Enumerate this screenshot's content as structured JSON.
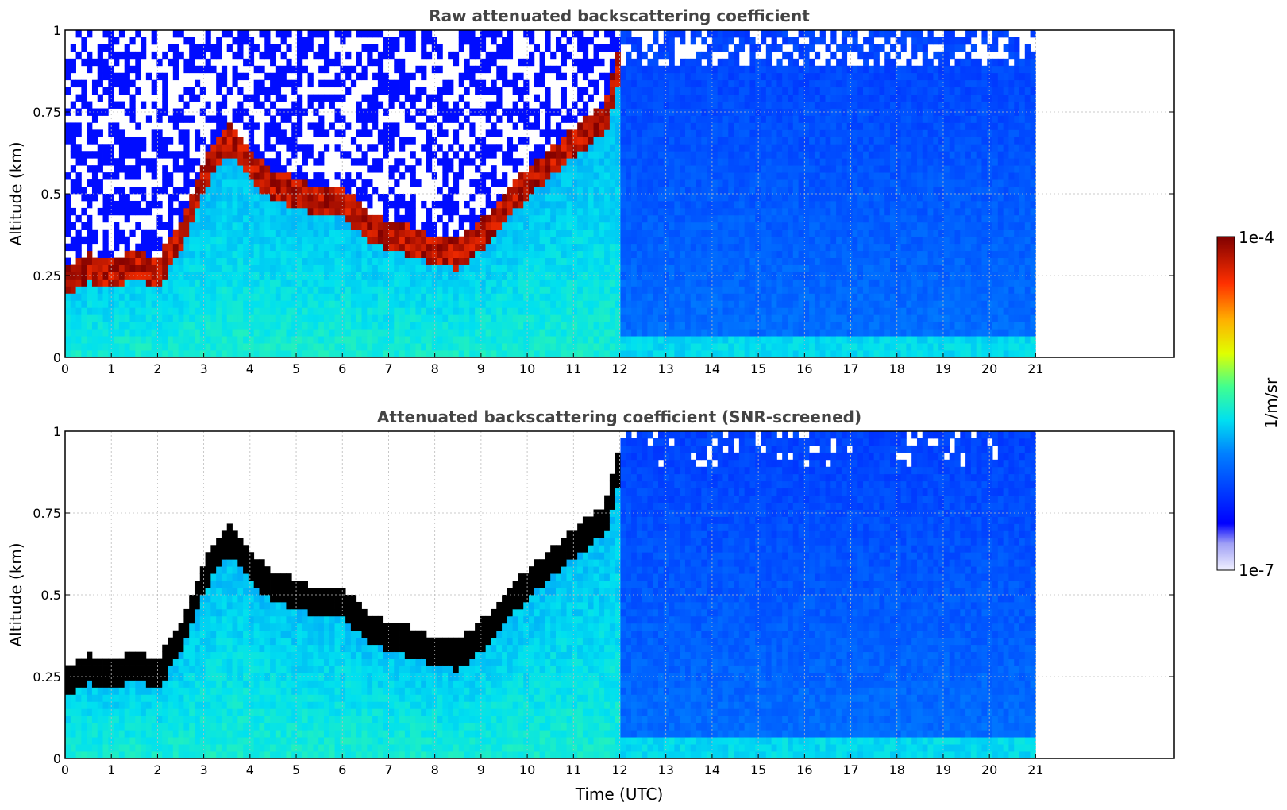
{
  "chart_data": [
    {
      "type": "heatmap",
      "title": "Raw attenuated backscattering coefficient",
      "xlabel": "",
      "ylabel": "Altitude (km)",
      "xlim": [
        0,
        24
      ],
      "ylim": [
        0,
        1
      ],
      "x_ticks": [
        "0",
        "1",
        "2",
        "3",
        "4",
        "5",
        "6",
        "7",
        "8",
        "9",
        "10",
        "11",
        "12",
        "13",
        "14",
        "15",
        "16",
        "17",
        "18",
        "19",
        "20",
        "21"
      ],
      "y_ticks": [
        "0",
        "0.25",
        "0.5",
        "0.75",
        "1"
      ],
      "data_extent_hours": [
        0,
        21
      ],
      "grid": true,
      "layer_top_km": [
        [
          0,
          0.27
        ],
        [
          0.5,
          0.32
        ],
        [
          1,
          0.3
        ],
        [
          1.5,
          0.33
        ],
        [
          2,
          0.3
        ],
        [
          2.5,
          0.42
        ],
        [
          3,
          0.6
        ],
        [
          3.5,
          0.72
        ],
        [
          4,
          0.63
        ],
        [
          4.5,
          0.57
        ],
        [
          5,
          0.55
        ],
        [
          5.5,
          0.52
        ],
        [
          6,
          0.53
        ],
        [
          6.5,
          0.45
        ],
        [
          7,
          0.42
        ],
        [
          7.5,
          0.4
        ],
        [
          8,
          0.37
        ],
        [
          8.5,
          0.36
        ],
        [
          9,
          0.42
        ],
        [
          9.5,
          0.5
        ],
        [
          10,
          0.58
        ],
        [
          10.5,
          0.64
        ],
        [
          11,
          0.7
        ],
        [
          11.7,
          0.78
        ],
        [
          12,
          0.95
        ]
      ],
      "screened": false
    },
    {
      "type": "heatmap",
      "title": "Attenuated backscattering coefficient (SNR-screened)",
      "xlabel": "Time (UTC)",
      "ylabel": "Altitude (km)",
      "xlim": [
        0,
        24
      ],
      "ylim": [
        0,
        1
      ],
      "x_ticks": [
        "0",
        "1",
        "2",
        "3",
        "4",
        "5",
        "6",
        "7",
        "8",
        "9",
        "10",
        "11",
        "12",
        "13",
        "14",
        "15",
        "16",
        "17",
        "18",
        "19",
        "20",
        "21"
      ],
      "y_ticks": [
        "0",
        "0.25",
        "0.5",
        "0.75",
        "1"
      ],
      "data_extent_hours": [
        0,
        21
      ],
      "grid": true,
      "layer_top_km": [
        [
          0,
          0.27
        ],
        [
          0.5,
          0.32
        ],
        [
          1,
          0.3
        ],
        [
          1.5,
          0.33
        ],
        [
          2,
          0.3
        ],
        [
          2.5,
          0.42
        ],
        [
          3,
          0.6
        ],
        [
          3.5,
          0.72
        ],
        [
          4,
          0.63
        ],
        [
          4.5,
          0.57
        ],
        [
          5,
          0.55
        ],
        [
          5.5,
          0.52
        ],
        [
          6,
          0.53
        ],
        [
          6.5,
          0.45
        ],
        [
          7,
          0.42
        ],
        [
          7.5,
          0.4
        ],
        [
          8,
          0.37
        ],
        [
          8.5,
          0.36
        ],
        [
          9,
          0.42
        ],
        [
          9.5,
          0.5
        ],
        [
          10,
          0.58
        ],
        [
          10.5,
          0.64
        ],
        [
          11,
          0.7
        ],
        [
          11.7,
          0.78
        ],
        [
          12,
          0.95
        ]
      ],
      "screened": true
    }
  ],
  "colorbar": {
    "label": "1/m/sr",
    "max_label": "1e-4",
    "min_label": "1e-7",
    "scale": "log",
    "range": [
      1e-07,
      0.0001
    ],
    "colormap": "jet"
  },
  "colors": {
    "layer": "#8b0000",
    "screened_layer": "#000000",
    "background_signal": "#1e5cf5",
    "near_surface": "#16b8f0"
  }
}
